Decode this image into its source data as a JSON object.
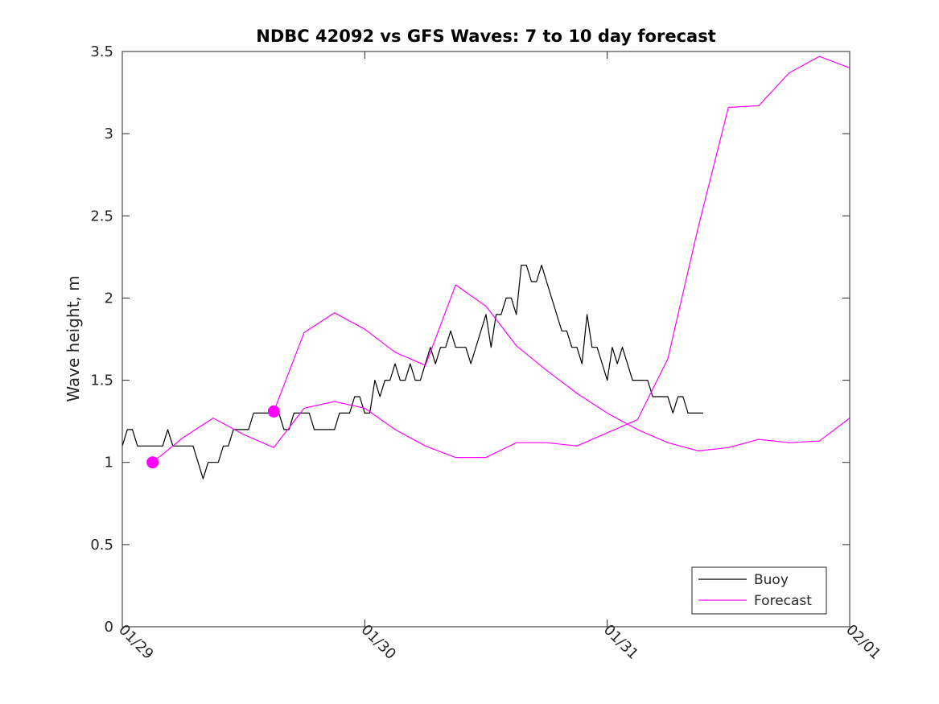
{
  "chart_data": {
    "type": "line",
    "title": "NDBC 42092 vs GFS Waves: 7 to 10 day forecast",
    "xlabel": "",
    "ylabel": "Wave height, m",
    "xlim": [
      0,
      3
    ],
    "ylim": [
      0,
      3.5
    ],
    "x_ticks": [
      {
        "value": 0,
        "label": "01/29"
      },
      {
        "value": 1,
        "label": "01/30"
      },
      {
        "value": 2,
        "label": "01/31"
      },
      {
        "value": 3,
        "label": "02/01"
      }
    ],
    "y_ticks": [
      {
        "value": 0,
        "label": "0"
      },
      {
        "value": 0.5,
        "label": "0.5"
      },
      {
        "value": 1,
        "label": "1"
      },
      {
        "value": 1.5,
        "label": "1.5"
      },
      {
        "value": 2,
        "label": "2"
      },
      {
        "value": 2.5,
        "label": "2.5"
      },
      {
        "value": 3,
        "label": "3"
      },
      {
        "value": 3.5,
        "label": "3.5"
      }
    ],
    "legend_position": "bottom-right",
    "series": [
      {
        "name": "Buoy",
        "color": "#000000",
        "x": [
          0.0,
          0.0208,
          0.0417,
          0.0625,
          0.0833,
          0.1042,
          0.125,
          0.1458,
          0.1667,
          0.1875,
          0.2083,
          0.2292,
          0.25,
          0.2708,
          0.2917,
          0.3125,
          0.3333,
          0.3542,
          0.375,
          0.3958,
          0.4167,
          0.4375,
          0.4583,
          0.4792,
          0.5,
          0.5208,
          0.5417,
          0.5625,
          0.5833,
          0.6042,
          0.625,
          0.6458,
          0.6667,
          0.6875,
          0.7083,
          0.7292,
          0.75,
          0.7708,
          0.7917,
          0.8125,
          0.8333,
          0.8542,
          0.875,
          0.8958,
          0.9167,
          0.9375,
          0.9583,
          0.9792,
          1.0,
          1.0208,
          1.0417,
          1.0625,
          1.0833,
          1.1042,
          1.125,
          1.1458,
          1.1667,
          1.1875,
          1.2083,
          1.2292,
          1.25,
          1.2708,
          1.2917,
          1.3125,
          1.3333,
          1.3542,
          1.375,
          1.3958,
          1.4167,
          1.4375,
          1.4583,
          1.4792,
          1.5,
          1.5208,
          1.5417,
          1.5625,
          1.5833,
          1.6042,
          1.625,
          1.6458,
          1.6667,
          1.6875,
          1.7083,
          1.7292,
          1.75,
          1.7708,
          1.7917,
          1.8125,
          1.8333,
          1.8542,
          1.875,
          1.8958,
          1.9167,
          1.9375,
          1.9583,
          1.9792,
          2.0,
          2.0208,
          2.0417,
          2.0625,
          2.0833,
          2.1042,
          2.125,
          2.1458,
          2.1667,
          2.1875,
          2.2083,
          2.2292,
          2.25,
          2.2708,
          2.2917,
          2.3125,
          2.3333,
          2.3542,
          2.375,
          2.3958
        ],
        "values": [
          1.1,
          1.2,
          1.2,
          1.1,
          1.1,
          1.1,
          1.1,
          1.1,
          1.1,
          1.2,
          1.1,
          1.1,
          1.1,
          1.1,
          1.1,
          1.0,
          0.9,
          1.0,
          1.0,
          1.0,
          1.1,
          1.1,
          1.2,
          1.2,
          1.2,
          1.2,
          1.3,
          1.3,
          1.3,
          1.3,
          1.3,
          1.3,
          1.2,
          1.2,
          1.3,
          1.3,
          1.3,
          1.3,
          1.2,
          1.2,
          1.2,
          1.2,
          1.2,
          1.3,
          1.3,
          1.3,
          1.4,
          1.4,
          1.3,
          1.3,
          1.5,
          1.4,
          1.5,
          1.5,
          1.6,
          1.5,
          1.5,
          1.6,
          1.5,
          1.5,
          1.6,
          1.7,
          1.6,
          1.7,
          1.7,
          1.8,
          1.7,
          1.7,
          1.7,
          1.6,
          1.7,
          1.8,
          1.9,
          1.7,
          1.9,
          1.9,
          2.0,
          2.0,
          1.9,
          2.2,
          2.2,
          2.1,
          2.1,
          2.2,
          2.1,
          2.0,
          1.9,
          1.8,
          1.8,
          1.7,
          1.7,
          1.6,
          1.9,
          1.7,
          1.7,
          1.6,
          1.5,
          1.7,
          1.6,
          1.7,
          1.6,
          1.5,
          1.5,
          1.5,
          1.5,
          1.4,
          1.4,
          1.4,
          1.4,
          1.3,
          1.4,
          1.4,
          1.3,
          1.3,
          1.3,
          1.3
        ]
      },
      {
        "name": "Forecast",
        "color": "#ff00ff",
        "segments": [
          {
            "x": [
              0.125,
              0.25,
              0.375,
              0.5,
              0.625,
              0.75,
              0.875,
              1.0,
              1.125,
              1.25,
              1.375,
              1.5,
              1.625,
              1.75,
              1.875,
              2.0,
              2.125,
              2.25,
              2.375,
              2.5,
              2.625,
              2.75,
              2.875,
              3.0
            ],
            "values": [
              1.0,
              1.15,
              1.27,
              1.17,
              1.09,
              1.33,
              1.37,
              1.33,
              1.2,
              1.1,
              1.03,
              1.03,
              1.12,
              1.12,
              1.1,
              1.18,
              1.26,
              1.63,
              2.43,
              3.16,
              3.17,
              3.37,
              3.47,
              3.4
            ]
          },
          {
            "x": [
              0.625,
              0.75,
              0.875,
              1.0,
              1.125,
              1.25,
              1.375,
              1.5,
              1.625,
              1.75,
              1.875,
              2.0,
              2.125,
              2.25,
              2.375,
              2.5,
              2.625,
              2.75,
              2.875,
              3.0
            ],
            "values": [
              1.31,
              1.79,
              1.91,
              1.81,
              1.67,
              1.59,
              2.08,
              1.95,
              1.71,
              1.56,
              1.42,
              1.3,
              1.2,
              1.12,
              1.07,
              1.09,
              1.14,
              1.12,
              1.13,
              1.27
            ]
          }
        ],
        "markers": [
          {
            "x": 0.125,
            "value": 1.0
          },
          {
            "x": 0.625,
            "value": 1.31
          }
        ]
      }
    ]
  }
}
